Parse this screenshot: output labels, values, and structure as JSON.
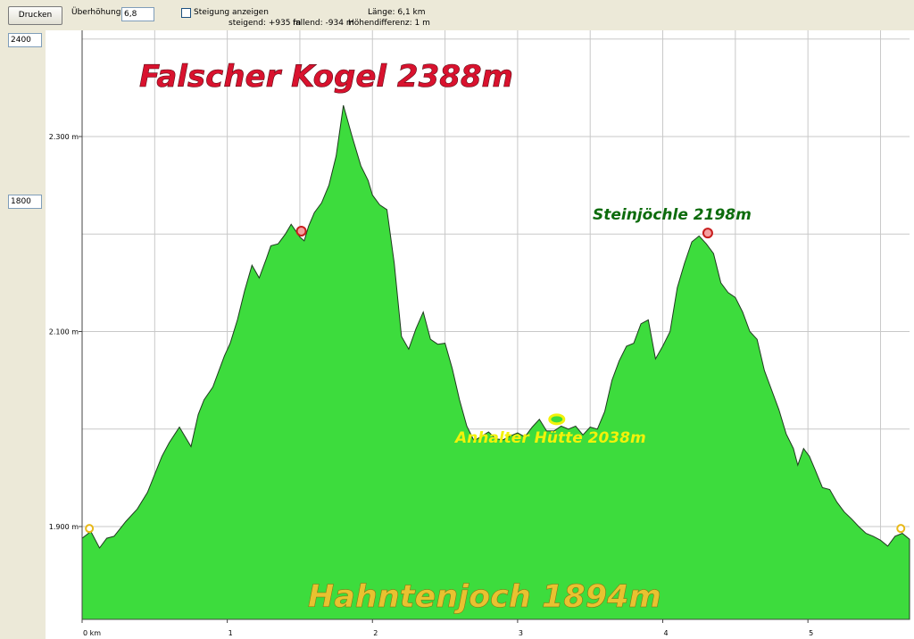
{
  "toolbar": {
    "print_label": "Drucken",
    "exaggeration_label": "Überhöhung",
    "exaggeration_value": "6,8",
    "gradient_label": "Steigung anzeigen",
    "ascent_text": "steigend: +935 m",
    "descent_text": "fallend: -934 m",
    "length_text": "Länge: 6,1 km",
    "elevdiff_text": "Höhendifferenz: 1 m"
  },
  "range": {
    "max_value": "2400",
    "min_value": "1800"
  },
  "colors": {
    "fill": "#3ddc3d",
    "title": "#d9122e",
    "steinjoechle": "#0c6b0c",
    "huette": "#f2f20a",
    "start": "#e8b818",
    "marker": "#c81e1e"
  },
  "chart_data": {
    "type": "area",
    "xlabel": "",
    "ylabel": "",
    "xlim": [
      0,
      5.7
    ],
    "ylim": [
      1800,
      2400
    ],
    "x_ticks": [
      {
        "v": 0,
        "label": "0 km"
      },
      {
        "v": 1,
        "label": "1"
      },
      {
        "v": 2,
        "label": "2"
      },
      {
        "v": 3,
        "label": "3"
      },
      {
        "v": 4,
        "label": "4"
      },
      {
        "v": 5,
        "label": "5"
      }
    ],
    "y_ticks": [
      {
        "v": 1900,
        "label": "1.900 m"
      },
      {
        "v": 2100,
        "label": "2.100 m"
      },
      {
        "v": 2300,
        "label": "2.300 m"
      }
    ],
    "grid": true,
    "series": [
      {
        "x": [
          0,
          0.06,
          0.12,
          0.17,
          0.22,
          0.3,
          0.38,
          0.45,
          0.55,
          0.6,
          0.67,
          0.75,
          0.8,
          0.84,
          0.9,
          0.98,
          1.02,
          1.07,
          1.12,
          1.17,
          1.22,
          1.27,
          1.3,
          1.35,
          1.4,
          1.44,
          1.5,
          1.53,
          1.56,
          1.6,
          1.65,
          1.7,
          1.75,
          1.8,
          1.86,
          1.92,
          1.97,
          2.0,
          2.05,
          2.1,
          2.15,
          2.2,
          2.25,
          2.3,
          2.35,
          2.4,
          2.45,
          2.5,
          2.55,
          2.6,
          2.65,
          2.7,
          2.8,
          2.85,
          2.9,
          2.95,
          3.0,
          3.05,
          3.1,
          3.15,
          3.2,
          3.25,
          3.3,
          3.35,
          3.4,
          3.45,
          3.5,
          3.55,
          3.6,
          3.65,
          3.7,
          3.75,
          3.8,
          3.85,
          3.9,
          3.95,
          4.0,
          4.05,
          4.1,
          4.15,
          4.2,
          4.25,
          4.3,
          4.35,
          4.4,
          4.45,
          4.5,
          4.55,
          4.6,
          4.65,
          4.7,
          4.75,
          4.8,
          4.85,
          4.9,
          4.93,
          4.97,
          5.01,
          5.05,
          5.1,
          5.15,
          5.2,
          5.25,
          5.3,
          5.35,
          5.4,
          5.45,
          5.5,
          5.55,
          5.6,
          5.65,
          5.7
        ],
        "y": [
          1888,
          1895,
          1878,
          1888,
          1890,
          1905,
          1918,
          1935,
          1972,
          1986,
          2002,
          1982,
          2015,
          2030,
          2043,
          2075,
          2088,
          2112,
          2142,
          2168,
          2155,
          2175,
          2188,
          2190,
          2200,
          2210,
          2197,
          2193,
          2208,
          2222,
          2232,
          2250,
          2280,
          2332,
          2300,
          2270,
          2255,
          2240,
          2230,
          2225,
          2170,
          2095,
          2082,
          2103,
          2120,
          2092,
          2087,
          2088,
          2062,
          2030,
          2003,
          1988,
          1997,
          1990,
          1989,
          1993,
          1996,
          1992,
          2002,
          2010,
          1998,
          1998,
          2003,
          2000,
          2003,
          1994,
          2002,
          2000,
          2018,
          2050,
          2070,
          2085,
          2088,
          2108,
          2112,
          2072,
          2085,
          2100,
          2145,
          2170,
          2192,
          2198,
          2190,
          2180,
          2150,
          2140,
          2135,
          2120,
          2100,
          2092,
          2060,
          2040,
          2020,
          1995,
          1980,
          1963,
          1980,
          1972,
          1958,
          1940,
          1938,
          1925,
          1915,
          1908,
          1900,
          1893,
          1890,
          1886,
          1880,
          1890,
          1893,
          1887
        ],
        "fill": "#3ddc3d"
      }
    ],
    "annotations": [
      {
        "text": "Falscher Kogel 2388m"
      },
      {
        "text": "Steinjöchle 2198m"
      },
      {
        "text": "Anhalter Hütte 2038m"
      },
      {
        "text": "Hahntenjoch 1894m"
      }
    ],
    "markers": [
      {
        "x": 0.05,
        "y": 1898,
        "style": "start"
      },
      {
        "x": 1.51,
        "y": 2203,
        "style": "peak"
      },
      {
        "x": 3.27,
        "y": 2010,
        "style": "hut"
      },
      {
        "x": 4.31,
        "y": 2201,
        "style": "peak"
      },
      {
        "x": 5.64,
        "y": 1898,
        "style": "start"
      }
    ]
  }
}
